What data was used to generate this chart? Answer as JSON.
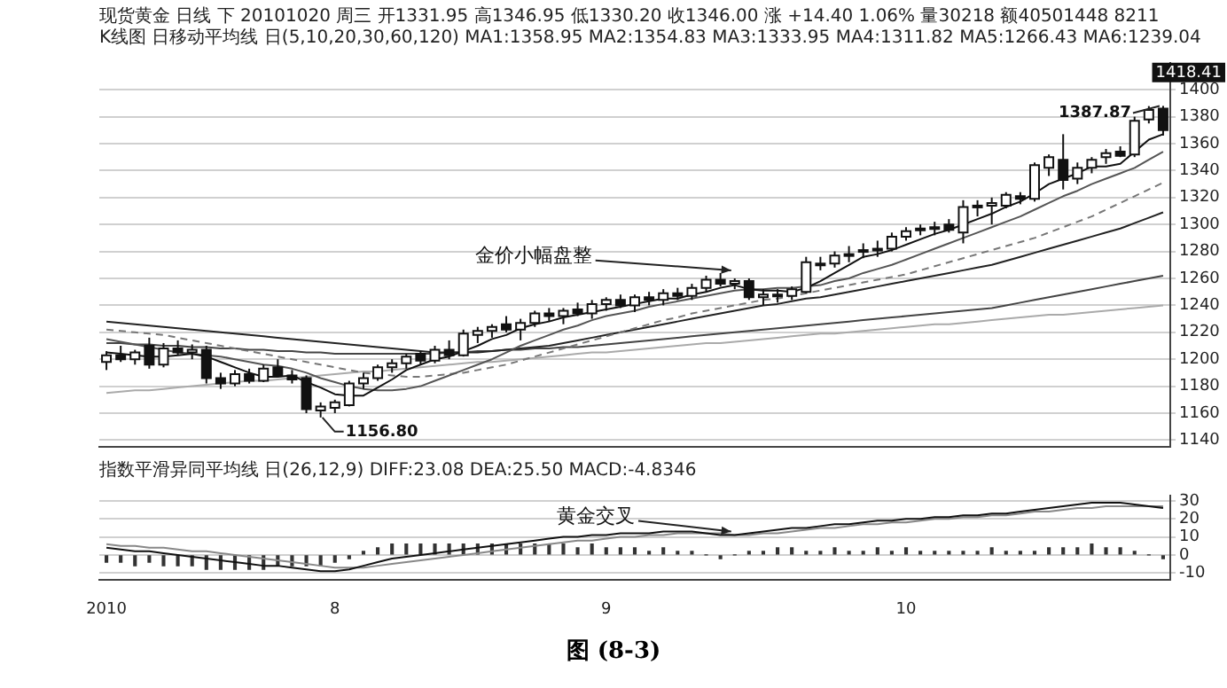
{
  "chart_data": [
    {
      "type": "candlestick",
      "title": "现货黄金 日线 下 20101020 周三 开1331.95 高1346.95 低1330.20 收1346.00 涨 +14.40 1.06% 量30218 额40501448 8211",
      "subtitle": "K线图 日移动平均线 日(5,10,20,30,60,120) MA1:1358.95 MA2:1354.83 MA3:1333.95 MA4:1311.82 MA5:1266.43 MA6:1239.04",
      "categories": [
        "2010",
        null,
        null,
        null,
        null,
        null,
        null,
        null,
        null,
        null,
        null,
        null,
        null,
        null,
        null,
        null,
        "8",
        null,
        null,
        null,
        null,
        null,
        null,
        null,
        null,
        null,
        null,
        null,
        null,
        null,
        null,
        null,
        null,
        null,
        null,
        "9",
        null,
        null,
        null,
        null,
        null,
        null,
        null,
        null,
        null,
        null,
        null,
        null,
        null,
        null,
        null,
        null,
        null,
        null,
        null,
        null,
        "10",
        null,
        null,
        null,
        null,
        null,
        null,
        null,
        null,
        null,
        null,
        null,
        null,
        null,
        null,
        null,
        null,
        null,
        null
      ],
      "ohlc": [
        [
          1198,
          1206,
          1192,
          1203
        ],
        [
          1203,
          1210,
          1198,
          1200
        ],
        [
          1200,
          1207,
          1196,
          1205
        ],
        [
          1210,
          1216,
          1193,
          1196
        ],
        [
          1196,
          1212,
          1194,
          1208
        ],
        [
          1208,
          1214,
          1203,
          1205
        ],
        [
          1205,
          1211,
          1200,
          1207
        ],
        [
          1207,
          1210,
          1182,
          1186
        ],
        [
          1186,
          1190,
          1178,
          1182
        ],
        [
          1182,
          1192,
          1180,
          1189
        ],
        [
          1189,
          1193,
          1182,
          1184
        ],
        [
          1184,
          1196,
          1183,
          1193
        ],
        [
          1194,
          1200,
          1187,
          1188
        ],
        [
          1188,
          1192,
          1182,
          1185
        ],
        [
          1186,
          1188,
          1160,
          1163
        ],
        [
          1162,
          1168,
          1156.8,
          1165
        ],
        [
          1164,
          1170,
          1160,
          1168
        ],
        [
          1166,
          1184,
          1165,
          1182
        ],
        [
          1182,
          1190,
          1178,
          1186
        ],
        [
          1186,
          1196,
          1184,
          1194
        ],
        [
          1194,
          1200,
          1190,
          1197
        ],
        [
          1197,
          1204,
          1193,
          1202
        ],
        [
          1204,
          1206,
          1196,
          1199
        ],
        [
          1199,
          1210,
          1197,
          1207
        ],
        [
          1207,
          1214,
          1200,
          1203
        ],
        [
          1203,
          1222,
          1202,
          1219
        ],
        [
          1218,
          1224,
          1212,
          1221
        ],
        [
          1221,
          1226,
          1216,
          1224
        ],
        [
          1226,
          1232,
          1220,
          1222
        ],
        [
          1222,
          1230,
          1214,
          1227
        ],
        [
          1227,
          1236,
          1224,
          1234
        ],
        [
          1234,
          1238,
          1228,
          1232
        ],
        [
          1232,
          1238,
          1226,
          1236
        ],
        [
          1237,
          1242,
          1232,
          1234
        ],
        [
          1234,
          1244,
          1230,
          1241
        ],
        [
          1241,
          1246,
          1236,
          1244
        ],
        [
          1244,
          1248,
          1238,
          1240
        ],
        [
          1240,
          1248,
          1235,
          1246
        ],
        [
          1246,
          1250,
          1240,
          1244
        ],
        [
          1244,
          1252,
          1240,
          1249
        ],
        [
          1249,
          1253,
          1244,
          1247
        ],
        [
          1247,
          1256,
          1244,
          1253
        ],
        [
          1253,
          1262,
          1250,
          1259
        ],
        [
          1259,
          1264,
          1254,
          1256
        ],
        [
          1256,
          1260,
          1252,
          1258
        ],
        [
          1258,
          1260,
          1244,
          1246
        ],
        [
          1246,
          1252,
          1240,
          1248
        ],
        [
          1248,
          1252,
          1242,
          1247
        ],
        [
          1247,
          1254,
          1244,
          1252
        ],
        [
          1250,
          1276,
          1249,
          1272
        ],
        [
          1270,
          1276,
          1266,
          1271
        ],
        [
          1271,
          1280,
          1268,
          1277
        ],
        [
          1277,
          1284,
          1272,
          1278
        ],
        [
          1280,
          1286,
          1275,
          1281
        ],
        [
          1281,
          1288,
          1276,
          1282
        ],
        [
          1282,
          1294,
          1280,
          1291
        ],
        [
          1291,
          1298,
          1288,
          1295
        ],
        [
          1296,
          1300,
          1292,
          1297
        ],
        [
          1297,
          1302,
          1292,
          1298
        ],
        [
          1300,
          1304,
          1294,
          1296
        ],
        [
          1294,
          1318,
          1286,
          1313
        ],
        [
          1313,
          1318,
          1306,
          1314
        ],
        [
          1314,
          1320,
          1300,
          1316
        ],
        [
          1314,
          1324,
          1312,
          1322
        ],
        [
          1321,
          1324,
          1315,
          1319
        ],
        [
          1319,
          1346,
          1317,
          1344
        ],
        [
          1342,
          1352,
          1336,
          1350
        ],
        [
          1348,
          1367,
          1326,
          1333
        ],
        [
          1334,
          1346,
          1330,
          1342
        ],
        [
          1342,
          1350,
          1338,
          1348
        ],
        [
          1350,
          1356,
          1345,
          1353
        ],
        [
          1354,
          1358,
          1350,
          1351
        ],
        [
          1352,
          1380,
          1350,
          1377
        ],
        [
          1378,
          1387.87,
          1375,
          1385
        ],
        [
          1386,
          1388,
          1366,
          1370
        ]
      ],
      "series": [
        {
          "type": "line",
          "color": "#111111",
          "values": [
            1205,
            1204,
            1203,
            1202,
            1202,
            1203,
            1204,
            1202,
            1198,
            1194,
            1190,
            1187,
            1187,
            1188,
            1183,
            1179,
            1174,
            1173,
            1173,
            1179,
            1185,
            1192,
            1196,
            1200,
            1202,
            1206,
            1210,
            1215,
            1218,
            1223,
            1226,
            1228,
            1231,
            1233,
            1235,
            1237,
            1239,
            1241,
            1243,
            1245,
            1245,
            1248,
            1250,
            1253,
            1255,
            1252,
            1251,
            1251,
            1250,
            1253,
            1258,
            1264,
            1270,
            1276,
            1278,
            1281,
            1285,
            1289,
            1293,
            1296,
            1300,
            1304,
            1308,
            1313,
            1317,
            1323,
            1330,
            1334,
            1338,
            1343,
            1343,
            1345,
            1354,
            1363,
            1367
          ]
        },
        {
          "type": "line",
          "color": "#555555",
          "values": [
            1215,
            1213,
            1211,
            1209,
            1207,
            1205,
            1204,
            1203,
            1202,
            1200,
            1198,
            1196,
            1195,
            1193,
            1190,
            1186,
            1183,
            1180,
            1178,
            1177,
            1177,
            1178,
            1180,
            1184,
            1188,
            1192,
            1196,
            1200,
            1205,
            1210,
            1214,
            1218,
            1222,
            1225,
            1229,
            1232,
            1234,
            1236,
            1239,
            1241,
            1243,
            1245,
            1247,
            1249,
            1251,
            1252,
            1252,
            1253,
            1253,
            1254,
            1255,
            1258,
            1260,
            1264,
            1267,
            1270,
            1274,
            1278,
            1282,
            1286,
            1290,
            1294,
            1298,
            1302,
            1306,
            1311,
            1316,
            1321,
            1325,
            1330,
            1334,
            1338,
            1342,
            1348,
            1354
          ]
        },
        {
          "type": "line",
          "color": "#777777",
          "line_style": "dashed",
          "values": [
            1222,
            1221,
            1220,
            1219,
            1218,
            1216,
            1214,
            1212,
            1210,
            1208,
            1206,
            1204,
            1202,
            1200,
            1198,
            1196,
            1194,
            1192,
            1190,
            1189,
            1188,
            1187,
            1187,
            1188,
            1189,
            1190,
            1192,
            1194,
            1196,
            1199,
            1202,
            1205,
            1208,
            1211,
            1214,
            1217,
            1220,
            1223,
            1226,
            1229,
            1231,
            1234,
            1236,
            1238,
            1240,
            1242,
            1244,
            1245,
            1247,
            1249,
            1251,
            1253,
            1255,
            1257,
            1259,
            1261,
            1263,
            1266,
            1269,
            1272,
            1275,
            1278,
            1281,
            1284,
            1287,
            1290,
            1294,
            1298,
            1302,
            1306,
            1311,
            1316,
            1321,
            1326,
            1331
          ]
        },
        {
          "type": "line",
          "color": "#222222",
          "values": [
            1228,
            1227,
            1226,
            1225,
            1224,
            1223,
            1222,
            1221,
            1220,
            1219,
            1218,
            1217,
            1216,
            1215,
            1214,
            1213,
            1212,
            1211,
            1210,
            1209,
            1208,
            1207,
            1206,
            1205,
            1205,
            1205,
            1205,
            1206,
            1207,
            1208,
            1209,
            1210,
            1212,
            1214,
            1216,
            1218,
            1220,
            1222,
            1224,
            1226,
            1228,
            1230,
            1232,
            1234,
            1236,
            1238,
            1240,
            1241,
            1243,
            1245,
            1246,
            1248,
            1250,
            1252,
            1254,
            1256,
            1258,
            1260,
            1262,
            1264,
            1266,
            1268,
            1270,
            1273,
            1276,
            1279,
            1282,
            1285,
            1288,
            1291,
            1294,
            1297,
            1301,
            1305,
            1309
          ]
        },
        {
          "type": "line",
          "color": "#444444",
          "values": [
            1212,
            1212,
            1211,
            1211,
            1210,
            1210,
            1209,
            1209,
            1208,
            1208,
            1207,
            1207,
            1206,
            1206,
            1205,
            1205,
            1204,
            1204,
            1204,
            1204,
            1204,
            1204,
            1204,
            1204,
            1205,
            1205,
            1206,
            1206,
            1207,
            1207,
            1208,
            1208,
            1209,
            1209,
            1210,
            1211,
            1212,
            1213,
            1214,
            1215,
            1216,
            1217,
            1218,
            1219,
            1220,
            1221,
            1222,
            1223,
            1224,
            1225,
            1226,
            1227,
            1228,
            1229,
            1230,
            1231,
            1232,
            1233,
            1234,
            1235,
            1236,
            1237,
            1238,
            1240,
            1242,
            1244,
            1246,
            1248,
            1250,
            1252,
            1254,
            1256,
            1258,
            1260,
            1262
          ]
        },
        {
          "type": "line",
          "color": "#aaaaaa",
          "values": [
            1175,
            1176,
            1177,
            1177,
            1178,
            1179,
            1180,
            1181,
            1182,
            1183,
            1184,
            1184,
            1185,
            1186,
            1187,
            1188,
            1189,
            1190,
            1191,
            1191,
            1192,
            1193,
            1194,
            1195,
            1196,
            1197,
            1198,
            1198,
            1199,
            1200,
            1201,
            1202,
            1203,
            1204,
            1205,
            1205,
            1206,
            1207,
            1208,
            1209,
            1210,
            1211,
            1212,
            1212,
            1213,
            1214,
            1215,
            1216,
            1217,
            1218,
            1219,
            1219,
            1220,
            1221,
            1222,
            1223,
            1224,
            1225,
            1226,
            1226,
            1227,
            1228,
            1229,
            1230,
            1231,
            1232,
            1233,
            1233,
            1234,
            1235,
            1236,
            1237,
            1238,
            1239,
            1240
          ]
        }
      ],
      "ylim": [
        1135,
        1420
      ],
      "yticks": [
        1140,
        1160,
        1180,
        1200,
        1220,
        1240,
        1260,
        1280,
        1300,
        1320,
        1340,
        1360,
        1380,
        1400
      ],
      "grid": "y",
      "tick_labels": "y",
      "annotations": [
        "金价小幅盘整",
        "1418.41",
        "1387.87",
        "1156.80"
      ]
    },
    {
      "type": "line",
      "title": "指数平滑异同平均线 日(26,12,9) DIFF:23.08 DEA:25.50 MACD:-4.8346",
      "categories": [
        "2010",
        null,
        null,
        null,
        null,
        null,
        null,
        null,
        null,
        null,
        null,
        null,
        null,
        null,
        null,
        null,
        "8",
        null,
        null,
        null,
        null,
        null,
        null,
        null,
        null,
        null,
        null,
        null,
        null,
        null,
        null,
        null,
        null,
        null,
        null,
        "9",
        null,
        null,
        null,
        null,
        null,
        null,
        null,
        null,
        null,
        null,
        null,
        null,
        null,
        null,
        null,
        null,
        null,
        null,
        null,
        null,
        "10",
        null,
        null,
        null,
        null,
        null,
        null,
        null,
        null,
        null,
        null,
        null,
        null,
        null,
        null,
        null,
        null,
        null,
        null
      ],
      "series": [
        {
          "type": "bar",
          "color": "#333333",
          "values": [
            -4,
            -4,
            -6,
            -4,
            -6,
            -6,
            -6,
            -8,
            -8,
            -8,
            -8,
            -8,
            -6,
            -6,
            -6,
            -6,
            -4,
            -2,
            2,
            4,
            6,
            6,
            6,
            6,
            6,
            6,
            6,
            6,
            6,
            6,
            6,
            6,
            6,
            4,
            6,
            4,
            4,
            4,
            2,
            4,
            2,
            2,
            0,
            -2,
            0,
            2,
            2,
            4,
            4,
            2,
            2,
            4,
            2,
            2,
            4,
            2,
            4,
            2,
            2,
            2,
            2,
            2,
            4,
            2,
            2,
            2,
            4,
            4,
            4,
            6,
            4,
            4,
            2,
            0,
            -2
          ]
        },
        {
          "type": "line",
          "color": "#111111",
          "values": [
            4,
            3,
            2,
            2,
            1,
            0,
            -1,
            -2,
            -3,
            -4,
            -5,
            -6,
            -6,
            -7,
            -8,
            -9,
            -9,
            -8,
            -6,
            -4,
            -2,
            -1,
            0,
            1,
            2,
            3,
            4,
            5,
            6,
            7,
            8,
            9,
            10,
            10,
            11,
            11,
            12,
            12,
            12,
            13,
            13,
            13,
            12,
            11,
            11,
            12,
            13,
            14,
            15,
            15,
            16,
            17,
            17,
            18,
            19,
            19,
            20,
            20,
            21,
            21,
            22,
            22,
            23,
            23,
            24,
            25,
            26,
            27,
            28,
            29,
            29,
            29,
            28,
            27,
            26
          ]
        },
        {
          "type": "line",
          "color": "#888888",
          "values": [
            6,
            5,
            5,
            4,
            4,
            3,
            2,
            2,
            1,
            0,
            -1,
            -2,
            -3,
            -4,
            -5,
            -6,
            -7,
            -7,
            -7,
            -6,
            -5,
            -4,
            -3,
            -2,
            -1,
            0,
            1,
            2,
            3,
            4,
            5,
            6,
            7,
            8,
            8,
            9,
            10,
            10,
            11,
            11,
            12,
            12,
            12,
            12,
            11,
            11,
            12,
            12,
            13,
            14,
            15,
            15,
            16,
            17,
            17,
            18,
            18,
            19,
            20,
            20,
            21,
            21,
            22,
            22,
            23,
            24,
            24,
            25,
            26,
            26,
            27,
            27,
            27,
            27,
            27
          ]
        }
      ],
      "ylim": [
        -14,
        33
      ],
      "yticks": [
        -10,
        0,
        10,
        20,
        30
      ],
      "grid": "y",
      "annotations": [
        {
          "text": "黄金交叉",
          "y": 11
        },
        "图 (8-3)"
      ]
    }
  ]
}
